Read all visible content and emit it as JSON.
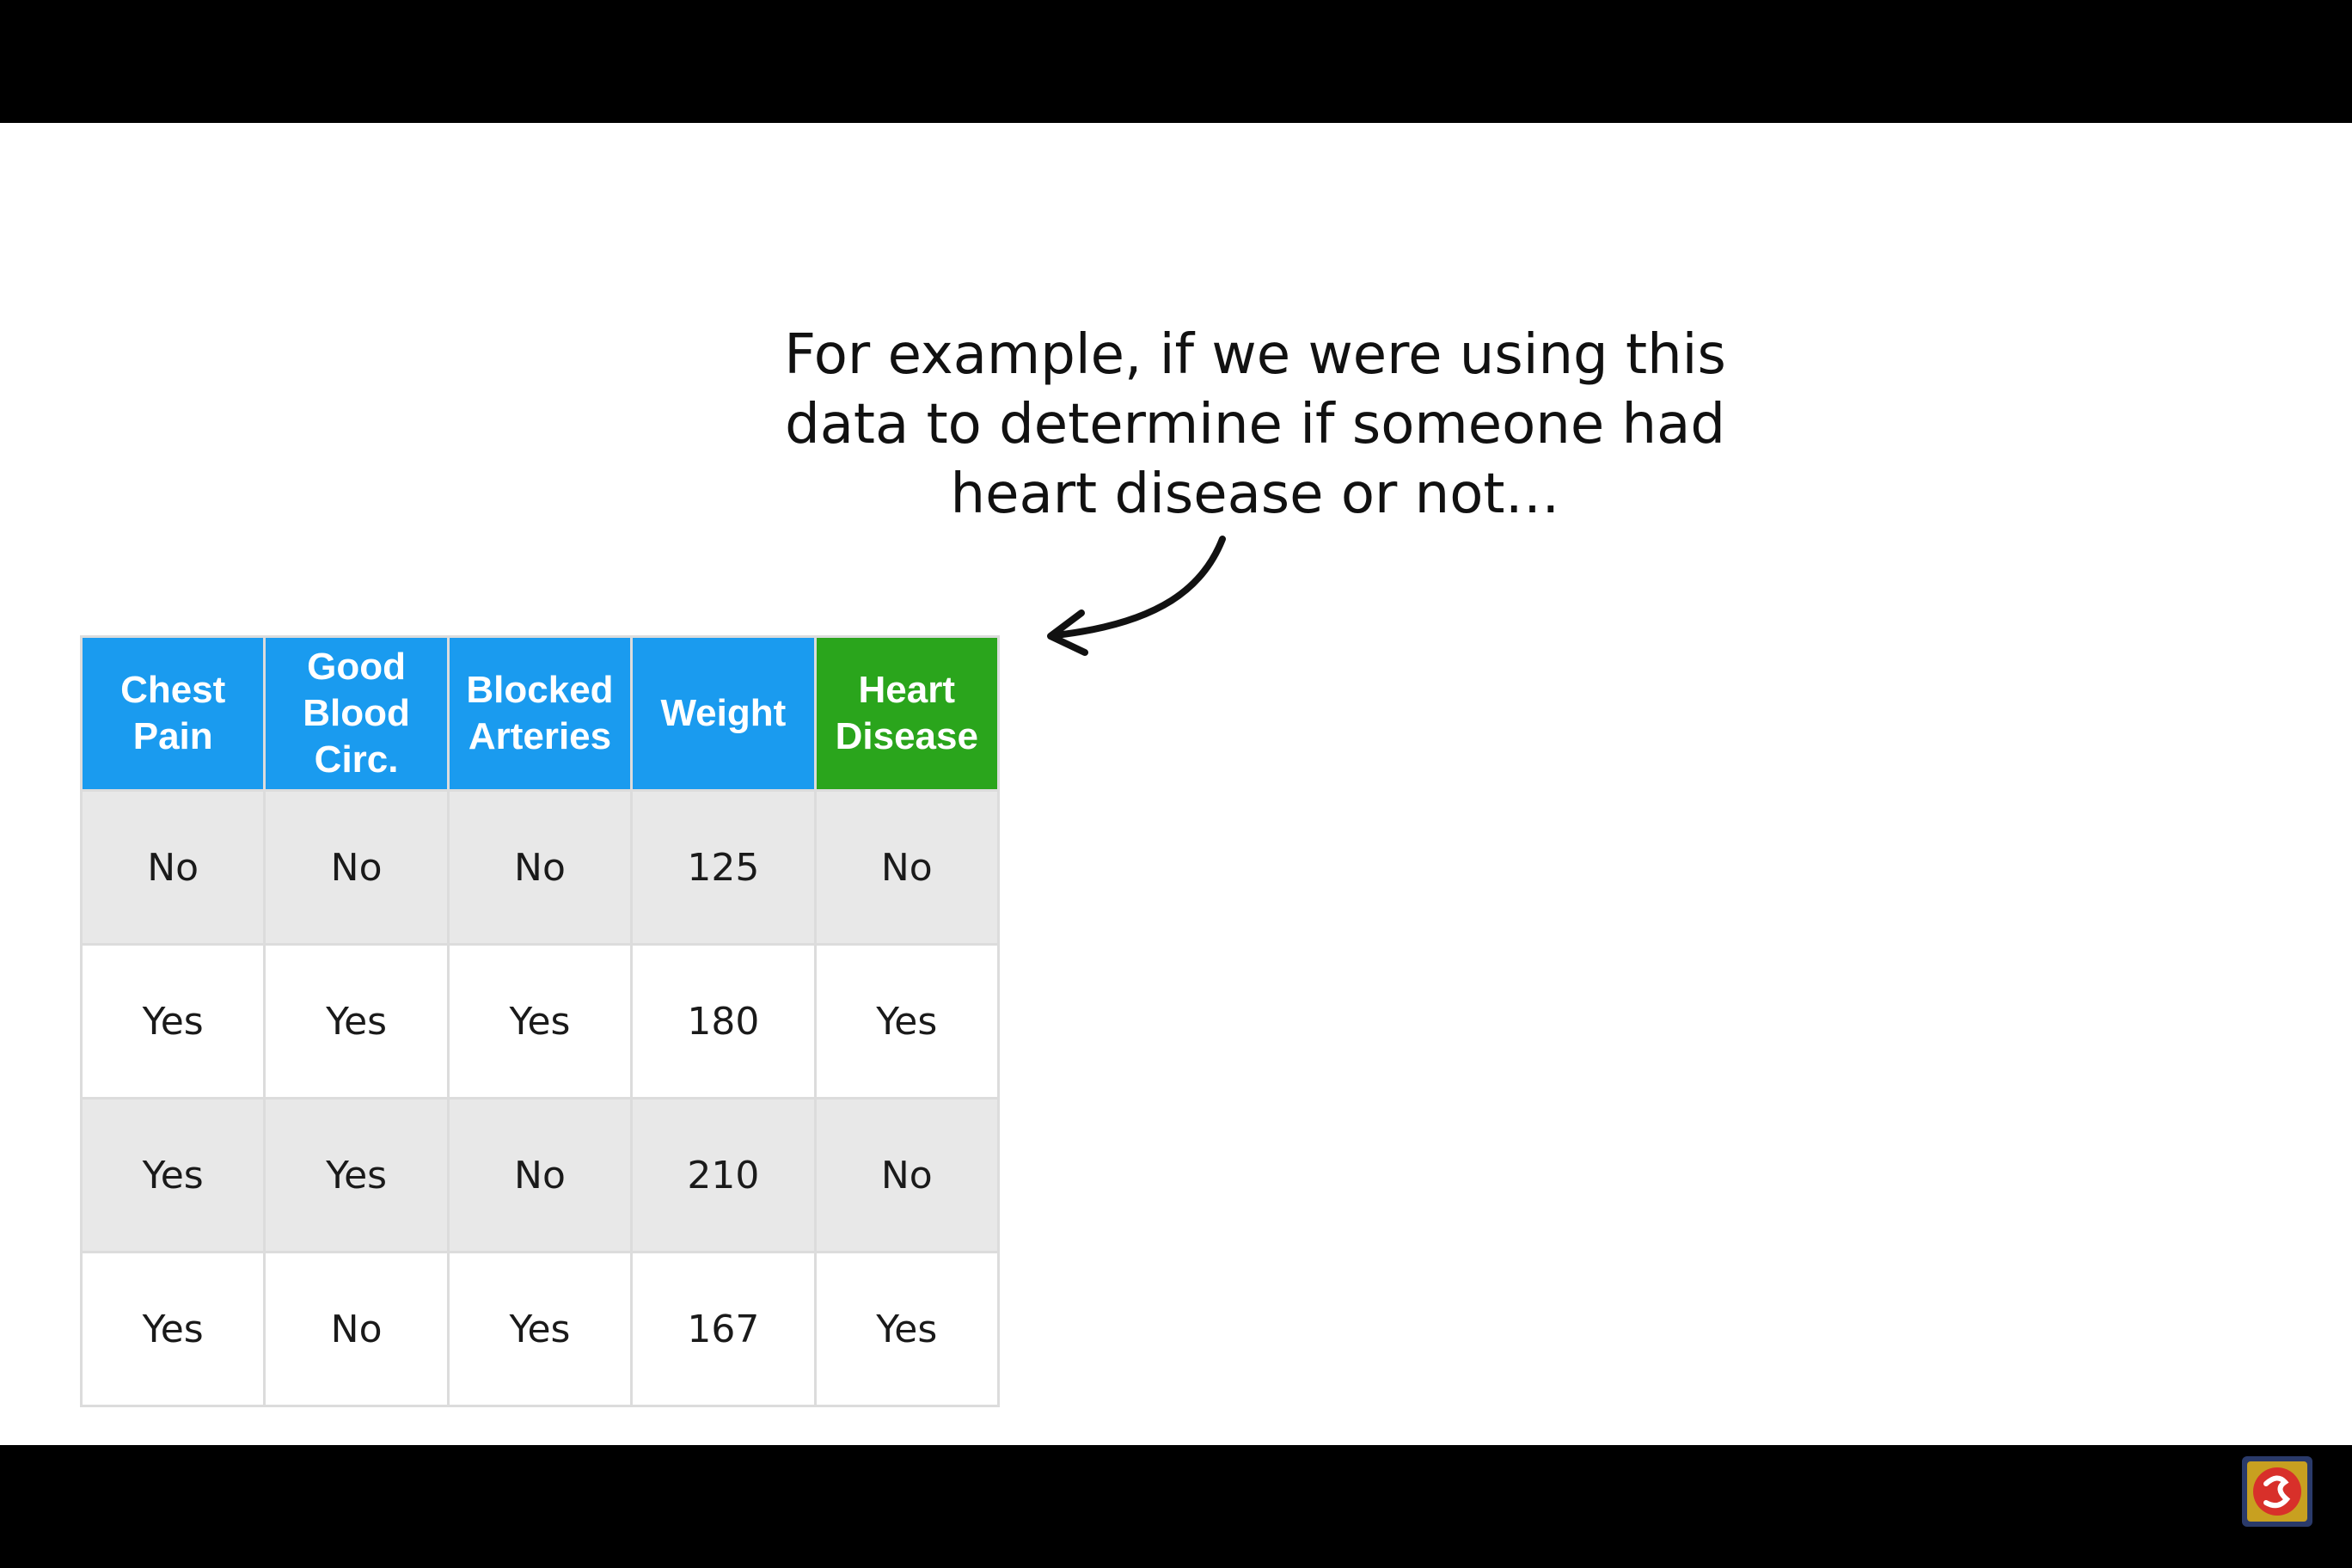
{
  "caption": {
    "line1": "For example, if we were using this",
    "line2": "data to determine if someone had",
    "line3": "heart disease or not…"
  },
  "table": {
    "headers": [
      {
        "line1": "Chest",
        "line2": "Pain",
        "line3": ""
      },
      {
        "line1": "Good",
        "line2": "Blood",
        "line3": "Circ."
      },
      {
        "line1": "Blocked",
        "line2": "Arteries",
        "line3": ""
      },
      {
        "line1": "Weight",
        "line2": "",
        "line3": ""
      },
      {
        "line1": "Heart",
        "line2": "Disease",
        "line3": ""
      }
    ],
    "rows": [
      [
        "No",
        "No",
        "No",
        "125",
        "No"
      ],
      [
        "Yes",
        "Yes",
        "Yes",
        "180",
        "Yes"
      ],
      [
        "Yes",
        "Yes",
        "No",
        "210",
        "No"
      ],
      [
        "Yes",
        "No",
        "Yes",
        "167",
        "Yes"
      ]
    ]
  },
  "colors": {
    "feature_header": "#1a9bef",
    "target_header": "#2aa51c",
    "shaded_row": "#e8e8e8"
  },
  "icons": {
    "annotation_arrow": "curved-arrow-icon",
    "channel_badge": "channel-logo-icon"
  }
}
